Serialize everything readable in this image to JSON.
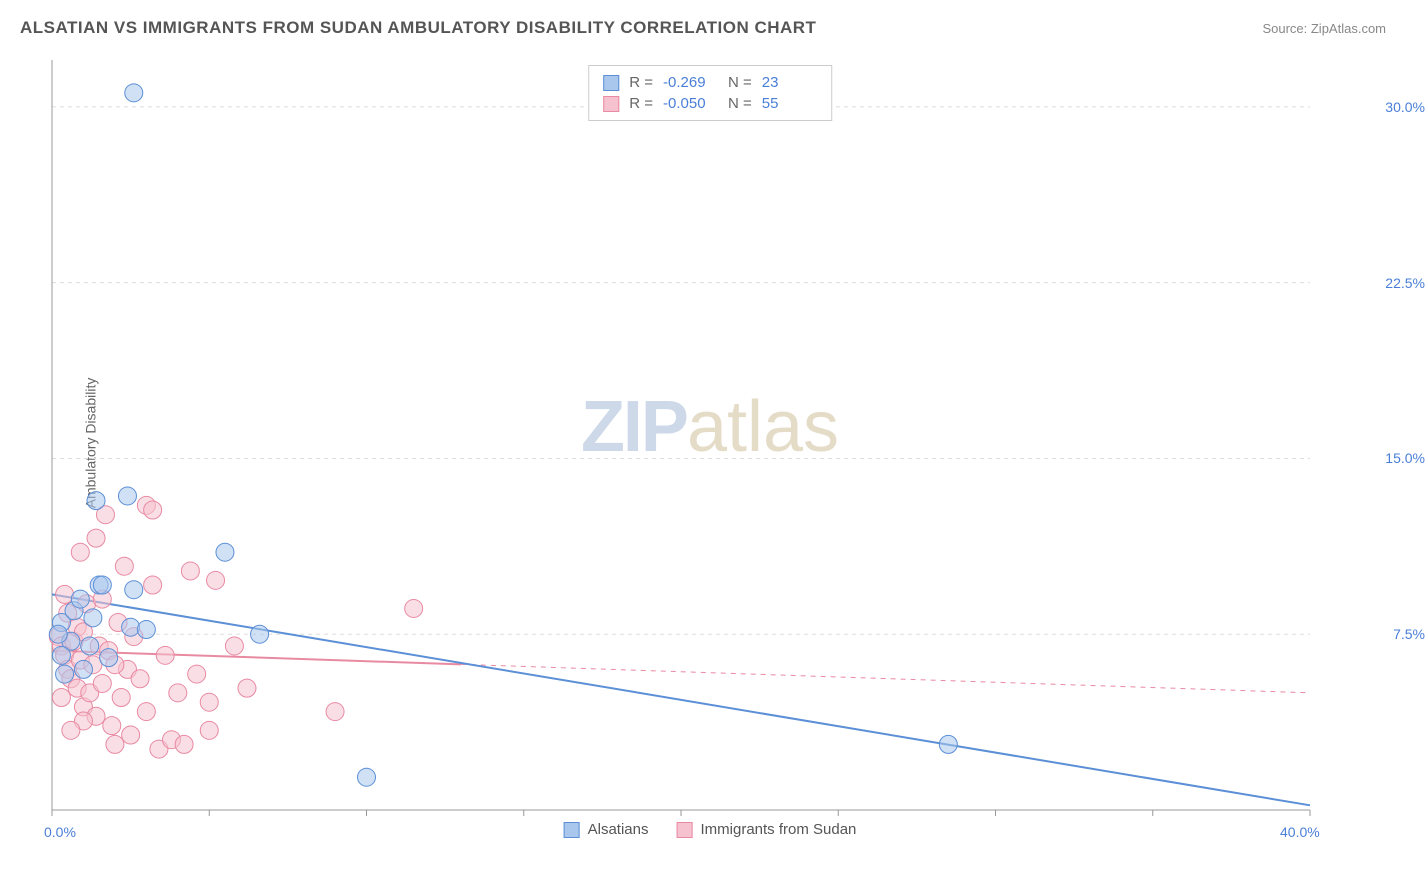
{
  "title": "ALSATIAN VS IMMIGRANTS FROM SUDAN AMBULATORY DISABILITY CORRELATION CHART",
  "source": "Source: ZipAtlas.com",
  "y_axis_label": "Ambulatory Disability",
  "watermark": {
    "part1": "ZIP",
    "part2": "atlas"
  },
  "chart": {
    "type": "scatter",
    "xlim": [
      0,
      40
    ],
    "ylim": [
      0,
      32
    ],
    "x_ticks": [
      0,
      5,
      10,
      15,
      20,
      25,
      30,
      35,
      40
    ],
    "x_tick_labels": {
      "0": "0.0%",
      "40": "40.0%"
    },
    "y_gridlines": [
      7.5,
      15.0,
      22.5,
      30.0
    ],
    "y_tick_labels": [
      "7.5%",
      "15.0%",
      "22.5%",
      "30.0%"
    ],
    "axis_color": "#999999",
    "grid_color": "#dddddd",
    "grid_dash": "4,4",
    "tick_label_color": "#4a7fd8",
    "background_color": "#ffffff",
    "marker_radius": 9,
    "marker_opacity": 0.55,
    "line_width": 2
  },
  "series": {
    "alsatians": {
      "label": "Alsatians",
      "color_fill": "#a9c6ed",
      "color_stroke": "#5b8fd6",
      "R": "-0.269",
      "N": "23",
      "trend": {
        "x1": 0,
        "y1": 9.2,
        "x2": 40,
        "y2": 0.2,
        "solid_until_x": 40
      },
      "points": [
        [
          2.6,
          30.6
        ],
        [
          1.4,
          13.2
        ],
        [
          2.4,
          13.4
        ],
        [
          1.5,
          9.6
        ],
        [
          1.6,
          9.6
        ],
        [
          0.3,
          8.0
        ],
        [
          2.5,
          7.8
        ],
        [
          3.0,
          7.7
        ],
        [
          0.6,
          7.2
        ],
        [
          1.2,
          7.0
        ],
        [
          6.6,
          7.5
        ],
        [
          0.3,
          6.6
        ],
        [
          2.6,
          9.4
        ],
        [
          5.5,
          11.0
        ],
        [
          10.0,
          1.4
        ],
        [
          28.5,
          2.8
        ],
        [
          0.4,
          5.8
        ],
        [
          1.0,
          6.0
        ],
        [
          0.7,
          8.5
        ],
        [
          1.8,
          6.5
        ],
        [
          0.2,
          7.5
        ],
        [
          0.9,
          9.0
        ],
        [
          1.3,
          8.2
        ]
      ]
    },
    "sudan": {
      "label": "Immigrants from Sudan",
      "color_fill": "#f6c2cf",
      "color_stroke": "#e88aa2",
      "R": "-0.050",
      "N": "55",
      "trend": {
        "x1": 0,
        "y1": 6.8,
        "x2": 40,
        "y2": 5.0,
        "solid_until_x": 13
      },
      "points": [
        [
          0.2,
          7.4
        ],
        [
          0.3,
          7.0
        ],
        [
          0.4,
          6.6
        ],
        [
          0.5,
          6.0
        ],
        [
          0.5,
          8.4
        ],
        [
          0.6,
          5.6
        ],
        [
          0.7,
          7.2
        ],
        [
          0.8,
          7.8
        ],
        [
          0.8,
          5.2
        ],
        [
          0.9,
          6.4
        ],
        [
          1.0,
          4.4
        ],
        [
          1.0,
          7.6
        ],
        [
          1.1,
          8.8
        ],
        [
          1.2,
          5.0
        ],
        [
          1.3,
          6.2
        ],
        [
          1.4,
          11.6
        ],
        [
          1.4,
          4.0
        ],
        [
          1.5,
          7.0
        ],
        [
          1.6,
          5.4
        ],
        [
          1.7,
          12.6
        ],
        [
          1.8,
          6.8
        ],
        [
          1.9,
          3.6
        ],
        [
          2.0,
          2.8
        ],
        [
          2.1,
          8.0
        ],
        [
          2.2,
          4.8
        ],
        [
          2.3,
          10.4
        ],
        [
          2.4,
          6.0
        ],
        [
          2.5,
          3.2
        ],
        [
          2.6,
          7.4
        ],
        [
          2.8,
          5.6
        ],
        [
          3.0,
          13.0
        ],
        [
          3.0,
          4.2
        ],
        [
          3.2,
          9.6
        ],
        [
          3.4,
          2.6
        ],
        [
          3.6,
          6.6
        ],
        [
          3.8,
          3.0
        ],
        [
          4.0,
          5.0
        ],
        [
          4.2,
          2.8
        ],
        [
          4.4,
          10.2
        ],
        [
          4.6,
          5.8
        ],
        [
          5.0,
          3.4
        ],
        [
          5.2,
          9.8
        ],
        [
          5.0,
          4.6
        ],
        [
          5.8,
          7.0
        ],
        [
          6.2,
          5.2
        ],
        [
          3.2,
          12.8
        ],
        [
          0.4,
          9.2
        ],
        [
          1.0,
          3.8
        ],
        [
          1.6,
          9.0
        ],
        [
          2.0,
          6.2
        ],
        [
          9.0,
          4.2
        ],
        [
          11.5,
          8.6
        ],
        [
          0.3,
          4.8
        ],
        [
          0.6,
          3.4
        ],
        [
          0.9,
          11.0
        ]
      ]
    }
  },
  "stats_labels": {
    "R": "R =",
    "N": "N ="
  }
}
